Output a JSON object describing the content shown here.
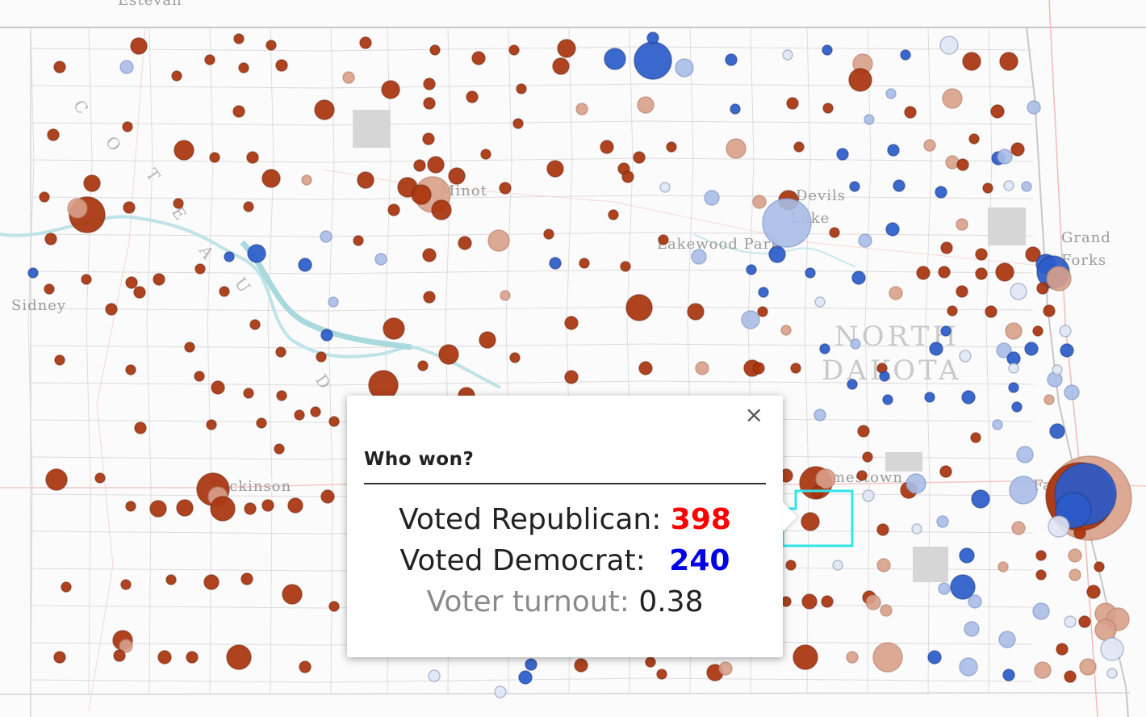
{
  "map": {
    "state_label": [
      "NORTH",
      "DAKOTA"
    ],
    "places": {
      "estevan": "Estevan",
      "sidney": "Sidney",
      "minot": "Minot",
      "devils_lake": [
        "Devils",
        "Lake"
      ],
      "lakewood_park": "Lakewood Park",
      "grand_forks": [
        "Grand",
        "Forks"
      ],
      "dickinson": "Dickinson",
      "jamestown": "Jamestown",
      "fargo": "Fargo"
    },
    "river": "COTEAU DU",
    "colors": {
      "republican": "#a8330c",
      "republican_light": "#d8a08a",
      "democrat": "#2a5bc9",
      "democrat_light": "#a9bde6",
      "highlight": "#2ee6ea",
      "water": "#bfe3e6"
    }
  },
  "popup": {
    "close": "×",
    "title": "Who won?",
    "rep_label": "Voted Republican:",
    "rep_value": "398",
    "dem_label": "Voted Democrat:",
    "dem_value": "240",
    "turnout_label": "Voter turnout:",
    "turnout_value": "0.38"
  }
}
